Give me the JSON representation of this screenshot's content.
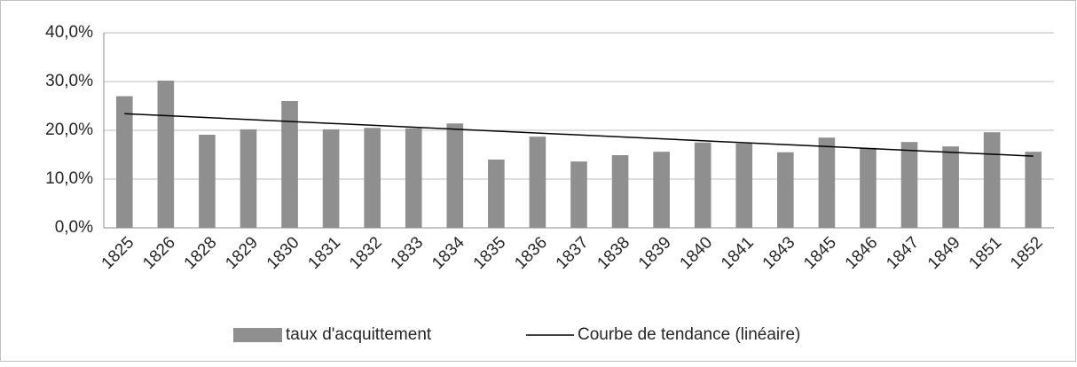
{
  "chart_data": {
    "type": "bar",
    "categories": [
      "1825",
      "1826",
      "1828",
      "1829",
      "1830",
      "1831",
      "1832",
      "1833",
      "1834",
      "1835",
      "1836",
      "1837",
      "1838",
      "1839",
      "1840",
      "1841",
      "1843",
      "1845",
      "1846",
      "1847",
      "1849",
      "1851",
      "1852"
    ],
    "series": [
      {
        "name": "taux d'acquittement",
        "color": "#8f8f8f",
        "values": [
          27.0,
          30.2,
          19.1,
          20.2,
          26.0,
          20.2,
          20.5,
          20.4,
          21.4,
          14.0,
          18.7,
          13.6,
          14.9,
          15.6,
          17.5,
          17.3,
          15.5,
          18.5,
          16.4,
          17.6,
          16.7,
          19.6,
          15.6
        ]
      }
    ],
    "trendline": {
      "name": "Courbe de tendance (linéaire)",
      "color": "#000000",
      "values": [
        23.4,
        14.7
      ]
    },
    "ylim": [
      0,
      40
    ],
    "yticks": [
      {
        "value": 0,
        "label": "0,0%"
      },
      {
        "value": 10,
        "label": "10,0%"
      },
      {
        "value": 20,
        "label": "20,0%"
      },
      {
        "value": 30,
        "label": "30,0%"
      },
      {
        "value": 40,
        "label": "40,0%"
      }
    ],
    "grid": true,
    "legend": "bottom"
  }
}
